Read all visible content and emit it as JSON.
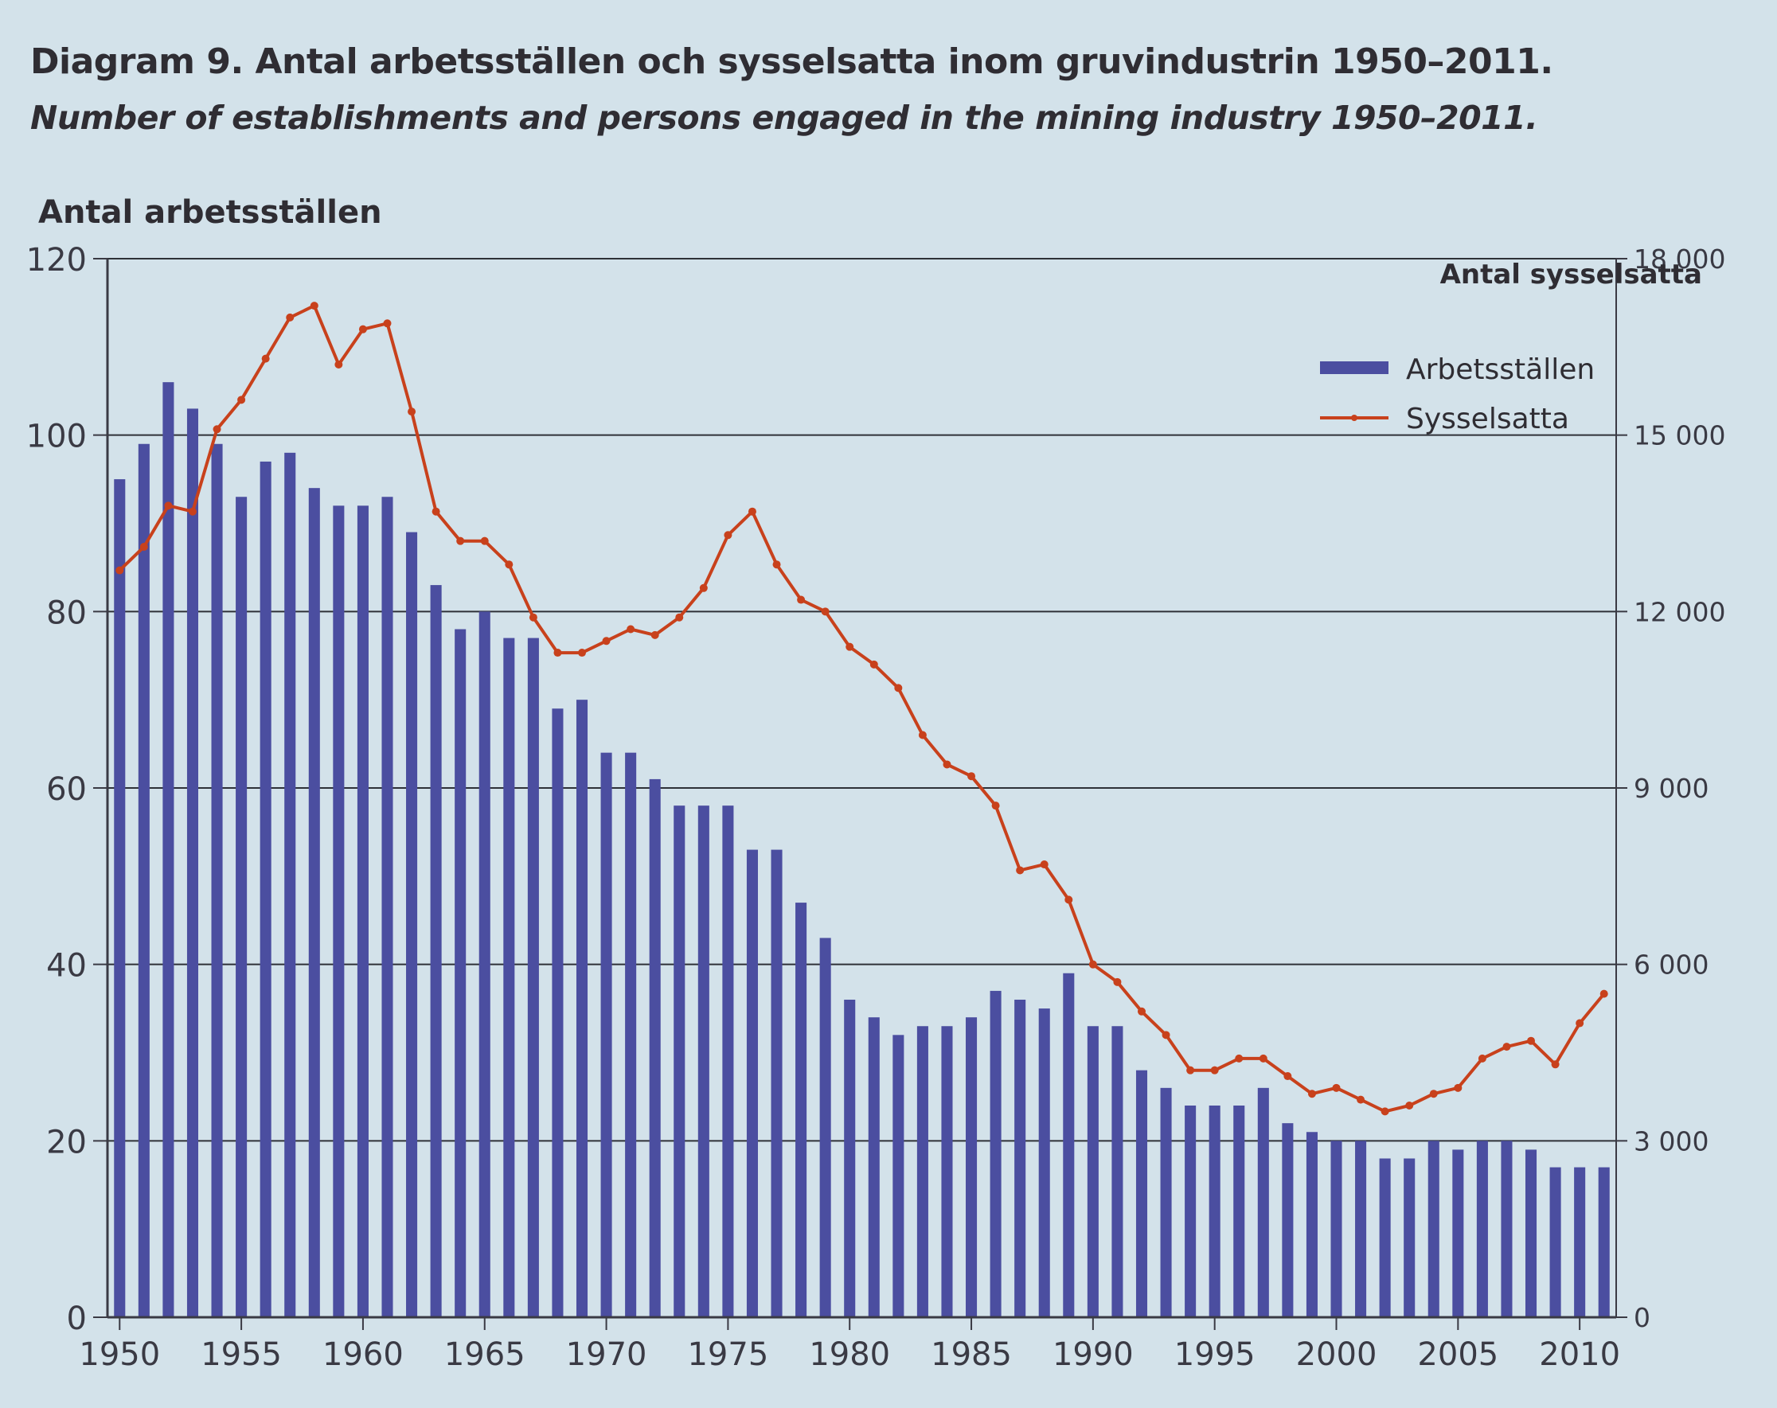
{
  "chart_data": {
    "type": "bar",
    "title": "Diagram 9. Antal arbetsställen och sysselsatta inom gruvindustrin 1950–2011.",
    "subtitle": "Number of establishments and persons engaged in the mining industry 1950–2011.",
    "ylabel_left": "Antal arbetsställen",
    "ylabel_right": "Antal sysselsatta",
    "ylim_left": [
      0,
      120
    ],
    "ylim_right": [
      0,
      18000
    ],
    "yticks_left": [
      "0",
      "20",
      "40",
      "60",
      "80",
      "100",
      "120"
    ],
    "yticks_right": [
      "0",
      "3 000",
      "6 000",
      "9 000",
      "12 000",
      "15 000",
      "18 000"
    ],
    "xticks": [
      "1950",
      "1955",
      "1960",
      "1965",
      "1970",
      "1975",
      "1980",
      "1985",
      "1990",
      "1995",
      "2000",
      "2005",
      "2010"
    ],
    "grid": true,
    "legend_position": "top-right",
    "colors": {
      "bars": "#4b4ea0",
      "line": "#c8411c",
      "axis": "#3a3a44",
      "background": "#d3e2ea"
    },
    "x": [
      1950,
      1951,
      1952,
      1953,
      1954,
      1955,
      1956,
      1957,
      1958,
      1959,
      1960,
      1961,
      1962,
      1963,
      1964,
      1965,
      1966,
      1967,
      1968,
      1969,
      1970,
      1971,
      1972,
      1973,
      1974,
      1975,
      1976,
      1977,
      1978,
      1979,
      1980,
      1981,
      1982,
      1983,
      1984,
      1985,
      1986,
      1987,
      1988,
      1989,
      1990,
      1991,
      1992,
      1993,
      1994,
      1995,
      1996,
      1997,
      1998,
      1999,
      2000,
      2001,
      2002,
      2003,
      2004,
      2005,
      2006,
      2007,
      2008,
      2009,
      2010,
      2011
    ],
    "series": [
      {
        "name": "Arbetsställen",
        "axis": "left",
        "kind": "bar",
        "values": [
          95,
          99,
          106,
          103,
          99,
          93,
          97,
          98,
          94,
          92,
          92,
          93,
          89,
          83,
          78,
          80,
          77,
          77,
          69,
          70,
          64,
          64,
          61,
          58,
          58,
          58,
          53,
          53,
          47,
          43,
          36,
          34,
          32,
          33,
          33,
          34,
          37,
          36,
          35,
          39,
          33,
          33,
          28,
          26,
          24,
          24,
          24,
          26,
          22,
          21,
          20,
          20,
          18,
          18,
          20,
          19,
          20,
          20,
          19,
          17,
          17,
          17
        ]
      },
      {
        "name": "Sysselsatta",
        "axis": "right",
        "kind": "line",
        "values": [
          12700,
          13100,
          13800,
          13700,
          15100,
          15600,
          16300,
          17000,
          17200,
          16200,
          16800,
          16900,
          15400,
          13700,
          13200,
          13200,
          12800,
          11900,
          11300,
          11300,
          11500,
          11700,
          11600,
          11900,
          12400,
          13300,
          13700,
          12800,
          12200,
          12000,
          11400,
          11100,
          10700,
          9900,
          9400,
          9200,
          8700,
          7600,
          7700,
          7100,
          6000,
          5700,
          5200,
          4800,
          4200,
          4200,
          4400,
          4400,
          4100,
          3800,
          3900,
          3700,
          3500,
          3600,
          3800,
          3900,
          4400,
          4600,
          4700,
          4300,
          5000,
          5500
        ]
      }
    ]
  }
}
